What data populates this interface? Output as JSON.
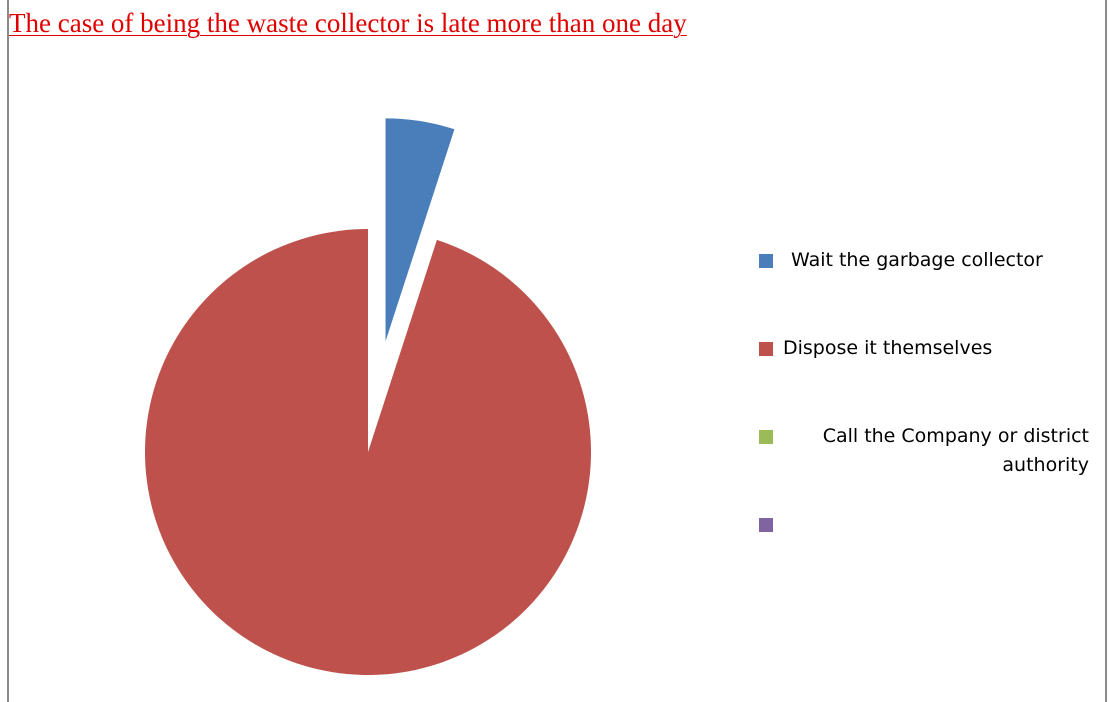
{
  "chart_data": {
    "type": "pie",
    "title": "The case of being the waste collector is late more than one day",
    "categories": [
      "Wait the garbage collector",
      "Dispose it themselves",
      "Call the Company or district authority",
      ""
    ],
    "values": [
      5,
      95,
      0,
      0
    ],
    "colors": [
      "#4a7ebb",
      "#be514b",
      "#9bbb59",
      "#8064a2"
    ],
    "exploded": [
      true,
      false,
      false,
      false
    ],
    "legend_position": "right"
  }
}
